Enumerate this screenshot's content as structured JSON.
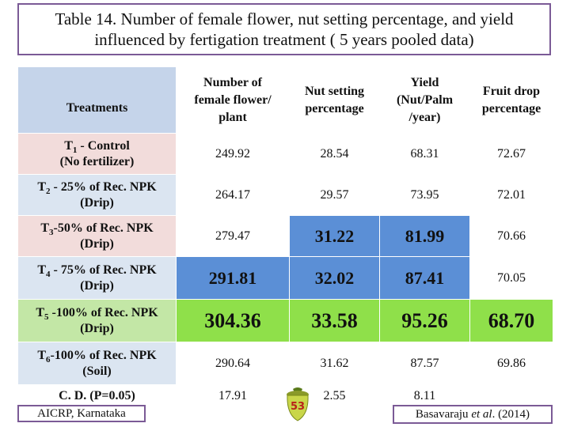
{
  "title": {
    "line1": "Table 14. Number of female flower, nut setting percentage, and yield",
    "line2": "influenced by fertigation treatment ( 5 years pooled data)"
  },
  "table": {
    "headers": {
      "treatments": "Treatments",
      "female_flower": [
        "Number of",
        "female flower/",
        "plant"
      ],
      "nut_setting": [
        "Nut setting",
        "percentage"
      ],
      "yield": [
        "Yield",
        "(Nut/Palm",
        "/year)"
      ],
      "fruit_drop": [
        "Fruit drop",
        "percentage"
      ]
    },
    "rows": [
      {
        "t": "T",
        "sub": "1",
        "rest": " - Control",
        "line2": "(No fertilizer)",
        "values": [
          "249.92",
          "28.54",
          "68.31",
          "72.67"
        ]
      },
      {
        "t": "T",
        "sub": "2",
        "rest": " - 25% of Rec. NPK",
        "line2": "(Drip)",
        "values": [
          "264.17",
          "29.57",
          "73.95",
          "72.01"
        ]
      },
      {
        "t": "T",
        "sub": "3",
        "rest": "-50% of Rec. NPK",
        "line2": "(Drip)",
        "values": [
          "279.47",
          "31.22",
          "81.99",
          "70.66"
        ]
      },
      {
        "t": "T",
        "sub": "4",
        "rest": " - 75% of Rec. NPK",
        "line2": "(Drip)",
        "values": [
          "291.81",
          "32.02",
          "87.41",
          "70.05"
        ]
      },
      {
        "t": "T",
        "sub": "5",
        "rest": " -100% of Rec. NPK",
        "line2": "(Drip)",
        "values": [
          "304.36",
          "33.58",
          "95.26",
          "68.70"
        ]
      },
      {
        "t": "T",
        "sub": "6",
        "rest": "-100% of Rec. NPK",
        "line2": "(Soil)",
        "values": [
          "290.64",
          "31.62",
          "87.57",
          "69.86"
        ]
      }
    ],
    "cd": {
      "label": "C. D. (P=0.05)",
      "values": [
        "17.91",
        "2.55",
        "8.11",
        ""
      ]
    }
  },
  "footer": {
    "aicrp": "AICRP,  Karnataka",
    "source_author": "Basavaraju ",
    "source_etal": "et al",
    "source_year": ". (2014)",
    "page_number": "53"
  },
  "colors": {
    "header_treatments_bg": "#c5d4ea",
    "row_pink": "#f2dcdb",
    "row_blue": "#dbe5f1",
    "row_green": "#c3e7a6",
    "highlight_blue": "#5b8fd6",
    "highlight_green": "#8fe04a",
    "border_purple": "#7b5a96"
  }
}
